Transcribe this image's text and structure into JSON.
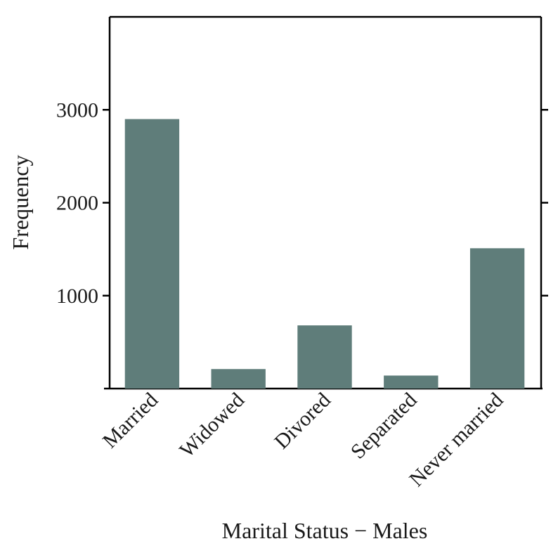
{
  "chart_data": {
    "type": "bar",
    "categories": [
      "Married",
      "Widowed",
      "Divored",
      "Separated",
      "Never married"
    ],
    "values": [
      2900,
      210,
      680,
      140,
      1510
    ],
    "xlabel": "Marital Status − Males",
    "ylabel": "Frequency",
    "ylim": [
      0,
      4000
    ],
    "yticks": [
      1000,
      2000,
      3000
    ],
    "ytick_labels": [
      "1000",
      "2000",
      "3000"
    ],
    "grid": false,
    "bar_color": "#5f7d7a",
    "axis_color": "#000000"
  }
}
